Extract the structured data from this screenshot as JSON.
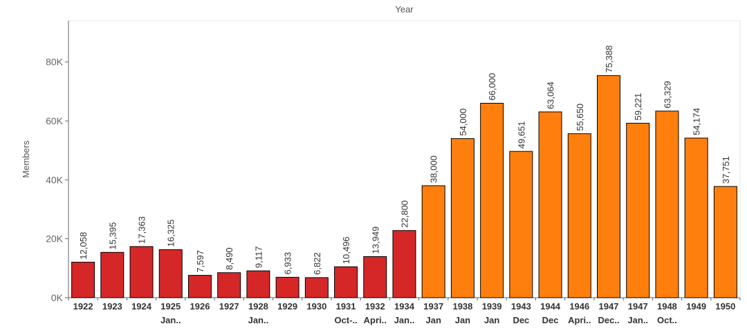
{
  "chart_data": {
    "type": "bar",
    "title": "",
    "xlabel": "Year",
    "ylabel": "Members",
    "ylim": [
      0,
      94000
    ],
    "yticks": [
      0,
      20000,
      40000,
      60000,
      80000
    ],
    "ytick_labels": [
      "0K",
      "20K",
      "40K",
      "60K",
      "80K"
    ],
    "grid": false,
    "legend": "none",
    "colors": {
      "red": "#d62728",
      "orange": "#ff7f0e",
      "bar_border": "#000000",
      "axis": "#666666"
    },
    "categories": [
      {
        "line1": "1922",
        "line2": "",
        "value": 12058,
        "label": "12,058",
        "group": "red"
      },
      {
        "line1": "1923",
        "line2": "",
        "value": 15395,
        "label": "15,395",
        "group": "red"
      },
      {
        "line1": "1924",
        "line2": "",
        "value": 17363,
        "label": "17,363",
        "group": "red"
      },
      {
        "line1": "1925",
        "line2": "Jan..",
        "value": 16325,
        "label": "16,325",
        "group": "red"
      },
      {
        "line1": "1926",
        "line2": "",
        "value": 7597,
        "label": "7,597",
        "group": "red"
      },
      {
        "line1": "1927",
        "line2": "",
        "value": 8490,
        "label": "8,490",
        "group": "red"
      },
      {
        "line1": "1928",
        "line2": "Jan..",
        "value": 9117,
        "label": "9,117",
        "group": "red"
      },
      {
        "line1": "1929",
        "line2": "",
        "value": 6933,
        "label": "6,933",
        "group": "red"
      },
      {
        "line1": "1930",
        "line2": "",
        "value": 6822,
        "label": "6,822",
        "group": "red"
      },
      {
        "line1": "1931",
        "line2": "Oct-..",
        "value": 10496,
        "label": "10,496",
        "group": "red"
      },
      {
        "line1": "1932",
        "line2": "Apri..",
        "value": 13949,
        "label": "13,949",
        "group": "red"
      },
      {
        "line1": "1934",
        "line2": "Jan..",
        "value": 22800,
        "label": "22,800",
        "group": "red"
      },
      {
        "line1": "1937",
        "line2": "Jan",
        "value": 38000,
        "label": "38,000",
        "group": "orange"
      },
      {
        "line1": "1938",
        "line2": "Jan",
        "value": 54000,
        "label": "54,000",
        "group": "orange"
      },
      {
        "line1": "1939",
        "line2": "Jan",
        "value": 66000,
        "label": "66,000",
        "group": "orange"
      },
      {
        "line1": "1943",
        "line2": "Dec",
        "value": 49651,
        "label": "49,651",
        "group": "orange"
      },
      {
        "line1": "1944",
        "line2": "Dec",
        "value": 63064,
        "label": "63,064",
        "group": "orange"
      },
      {
        "line1": "1946",
        "line2": "Apri..",
        "value": 55650,
        "label": "55,650",
        "group": "orange"
      },
      {
        "line1": "1947",
        "line2": "Dec..",
        "value": 75388,
        "label": "75,388",
        "group": "orange"
      },
      {
        "line1": "1947",
        "line2": "Jan..",
        "value": 59221,
        "label": "59,221",
        "group": "orange"
      },
      {
        "line1": "1948",
        "line2": "Oct..",
        "value": 63329,
        "label": "63,329",
        "group": "orange"
      },
      {
        "line1": "1949",
        "line2": "",
        "value": 54174,
        "label": "54,174",
        "group": "orange"
      },
      {
        "line1": "1950",
        "line2": "",
        "value": 37751,
        "label": "37,751",
        "group": "orange"
      }
    ]
  }
}
